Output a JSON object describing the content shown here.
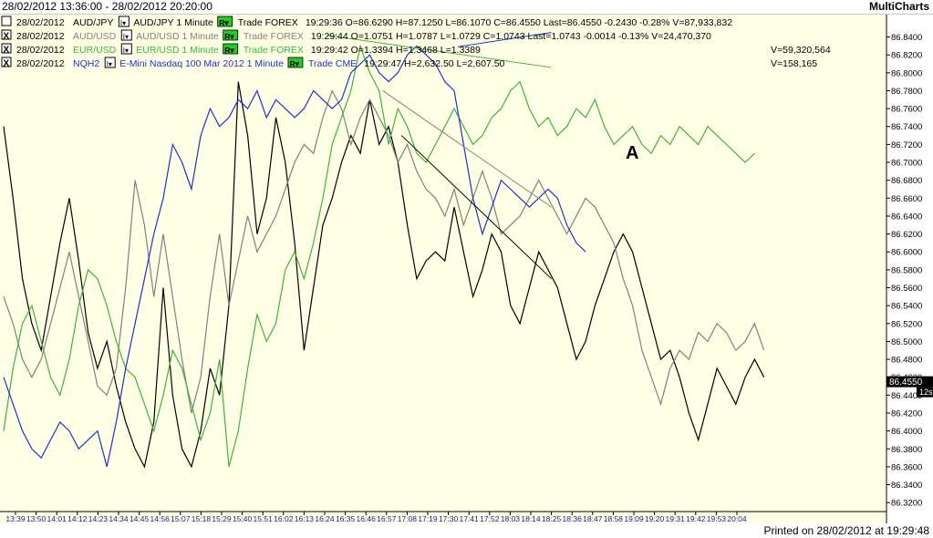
{
  "window": {
    "range": "28/02/2012 13:36:00 - 28/02/2012 20:20:00",
    "brand": "MultiCharts"
  },
  "footer": {
    "printed": "Printed on 28/02/2012 at 19:29:48"
  },
  "colors": {
    "background": "#ffffe6",
    "audjpy": "#000000",
    "audusd": "#808080",
    "eurusd": "#3cb43c",
    "nqh2": "#1e32c8",
    "btn": "#22cc22"
  },
  "legend": [
    {
      "check": "",
      "date": "28/02/2012",
      "sym": "AUD/JPY",
      "desc": "AUD/JPY 1 Minute",
      "venue": "Trade  FOREX",
      "stats": "19:29:36  O=86.6290  H=87.1250  L=86.1070  C=86.4550  Last=86.4550  -0.2430  -0.28%  V=87,933,832",
      "vol": "",
      "color": "#000000"
    },
    {
      "check": "X",
      "date": "28/02/2012",
      "sym": "AUD/USD",
      "desc": "AUD/USD 1 Minute",
      "venue": "Trade  FOREX",
      "stats": "19:29:44  O=1.0751  H=1.0787  L=1.0729  C=1.0743  Last=1.0743  -0.0014  -0.13%  V=24,470,370",
      "vol": "",
      "color": "#808080"
    },
    {
      "check": "X",
      "date": "28/02/2012",
      "sym": "EUR/USD",
      "desc": "EUR/USD 1 Minute",
      "venue": "Trade  FOREX",
      "stats": "19:29:42  O=1.3394  H=1.3468  L=1.3389",
      "vol": "V=59,320,564",
      "color": "#3cb43c"
    },
    {
      "check": "X",
      "date": "28/02/2012",
      "sym": "NQH2",
      "desc": "E-Mini Nasdaq 100 Mar 2012  1 Minute",
      "venue": "Trade  CME",
      "stats": "19:29:47                    H=2,632.50  L=2,607.50",
      "vol": "V=158,165",
      "color": "#1e32c8"
    }
  ],
  "annotation": "A",
  "chart_data": {
    "type": "line",
    "y_ticks": [
      86.32,
      86.34,
      86.36,
      86.38,
      86.4,
      86.42,
      86.44,
      86.46,
      86.48,
      86.5,
      86.52,
      86.54,
      86.56,
      86.58,
      86.6,
      86.62,
      86.64,
      86.66,
      86.68,
      86.7,
      86.72,
      86.74,
      86.76,
      86.78,
      86.8,
      86.82,
      86.84
    ],
    "y_tick_labels": [
      "86.3200",
      "86.3400",
      "86.3600",
      "86.3800",
      "86.4000",
      "86.4200",
      "86.4400",
      "86.4600",
      "86.4800",
      "86.5000",
      "86.5200",
      "86.5400",
      "86.5600",
      "86.5800",
      "86.6000",
      "86.6200",
      "86.6400",
      "86.6600",
      "86.6800",
      "86.7000",
      "86.7200",
      "86.7400",
      "86.7600",
      "86.7800",
      "86.8000",
      "86.8200",
      "86.8400"
    ],
    "ylim": [
      86.31,
      86.865
    ],
    "x_ticks": [
      "13:39",
      "13:50",
      "14:01",
      "14:12",
      "14:23",
      "14:34",
      "14:45",
      "14:56",
      "15:07",
      "15:18",
      "15:29",
      "15:40",
      "15:51",
      "16:02",
      "16:13",
      "16:24",
      "16:35",
      "16:46",
      "16:57",
      "17:08",
      "17:19",
      "17:30",
      "17:41",
      "17:52",
      "18:03",
      "18:14",
      "18:25",
      "18:36",
      "18:47",
      "18:58",
      "19:09",
      "19:20",
      "19:31",
      "19:42",
      "19:53",
      "20:04"
    ],
    "last_price": {
      "label": "86.4550",
      "value": 86.455,
      "countdown": "12s"
    },
    "series": [
      {
        "name": "AUD/JPY",
        "key": "audjpy",
        "values": [
          86.74,
          86.66,
          86.57,
          86.52,
          86.49,
          86.55,
          86.61,
          86.66,
          86.59,
          86.51,
          86.47,
          86.5,
          86.45,
          86.41,
          86.38,
          86.36,
          86.41,
          86.56,
          86.44,
          86.38,
          86.36,
          86.4,
          86.47,
          86.44,
          86.54,
          86.79,
          86.73,
          86.62,
          86.66,
          86.75,
          86.7,
          86.61,
          86.49,
          86.56,
          86.63,
          86.66,
          86.7,
          86.73,
          86.71,
          86.77,
          86.72,
          86.74,
          86.7,
          86.63,
          86.57,
          86.59,
          86.6,
          86.59,
          86.65,
          86.6,
          86.55,
          86.58,
          86.62,
          86.6,
          86.54,
          86.52,
          86.56,
          86.6,
          86.58,
          86.56,
          86.52,
          86.48,
          86.5,
          86.54,
          86.57,
          86.6,
          86.62,
          86.6,
          86.56,
          86.52,
          86.48,
          86.49,
          86.46,
          86.42,
          86.39,
          86.43,
          86.47,
          86.45,
          86.43,
          86.46,
          86.48,
          86.46,
          null
        ]
      },
      {
        "name": "AUD/USD",
        "key": "audusd",
        "values": [
          86.55,
          86.52,
          86.48,
          86.46,
          86.48,
          86.52,
          86.56,
          86.6,
          86.55,
          86.5,
          86.45,
          86.44,
          86.47,
          86.56,
          86.68,
          86.63,
          86.55,
          86.62,
          86.55,
          86.48,
          86.42,
          86.46,
          86.55,
          86.62,
          86.54,
          86.59,
          86.64,
          86.6,
          86.62,
          86.64,
          86.67,
          86.7,
          86.72,
          86.71,
          86.75,
          86.78,
          86.76,
          86.72,
          86.75,
          86.77,
          86.75,
          86.73,
          86.7,
          86.72,
          86.69,
          86.67,
          86.66,
          86.64,
          86.67,
          86.63,
          86.66,
          86.69,
          86.66,
          86.62,
          86.63,
          86.64,
          86.66,
          86.68,
          86.66,
          86.64,
          86.62,
          86.64,
          86.66,
          86.65,
          86.63,
          86.61,
          86.57,
          86.54,
          86.49,
          86.46,
          86.43,
          86.47,
          86.49,
          86.48,
          86.51,
          86.5,
          86.52,
          86.51,
          86.49,
          86.5,
          86.52,
          86.49,
          null
        ]
      },
      {
        "name": "EUR/USD",
        "key": "eurusd",
        "values": [
          86.4,
          86.47,
          86.52,
          86.54,
          86.5,
          86.46,
          86.44,
          86.48,
          86.54,
          86.58,
          86.57,
          86.54,
          86.5,
          86.47,
          86.46,
          86.43,
          86.4,
          86.44,
          86.49,
          86.47,
          86.43,
          86.39,
          86.42,
          86.48,
          86.36,
          86.4,
          86.47,
          86.53,
          86.5,
          86.52,
          86.58,
          86.6,
          86.57,
          86.61,
          86.66,
          86.72,
          86.75,
          86.78,
          86.83,
          86.8,
          86.78,
          86.72,
          86.76,
          86.74,
          86.71,
          86.7,
          86.72,
          86.74,
          86.76,
          86.74,
          86.72,
          86.73,
          86.75,
          86.76,
          86.78,
          86.79,
          86.76,
          86.74,
          86.75,
          86.73,
          86.74,
          86.76,
          86.75,
          86.77,
          86.74,
          86.72,
          86.73,
          86.74,
          86.72,
          86.71,
          86.73,
          86.72,
          86.74,
          86.73,
          86.72,
          86.74,
          86.73,
          86.72,
          86.71,
          86.7,
          86.71,
          null,
          null
        ]
      },
      {
        "name": "NQH2",
        "key": "nqh2",
        "values": [
          86.46,
          86.43,
          86.4,
          86.38,
          86.37,
          86.39,
          86.41,
          86.4,
          86.38,
          86.39,
          86.4,
          86.36,
          86.41,
          86.47,
          86.52,
          86.57,
          86.62,
          86.66,
          86.72,
          86.7,
          86.67,
          86.73,
          86.76,
          86.74,
          86.75,
          86.77,
          86.76,
          86.78,
          86.75,
          86.77,
          86.76,
          86.75,
          86.76,
          86.78,
          86.77,
          86.76,
          86.77,
          86.8,
          86.81,
          86.82,
          86.8,
          86.79,
          86.8,
          86.82,
          86.83,
          86.82,
          86.81,
          86.79,
          86.78,
          86.72,
          86.66,
          86.62,
          86.65,
          86.68,
          86.67,
          86.66,
          86.65,
          86.66,
          86.67,
          86.66,
          86.63,
          86.61,
          86.6,
          null,
          null,
          null,
          null,
          null,
          null,
          null,
          null,
          null,
          null,
          null,
          null,
          null,
          null,
          null,
          null,
          null,
          null,
          null,
          null
        ]
      }
    ],
    "trendlines": [
      {
        "key": "eurusd",
        "from": [
          "16:25",
          86.842
        ],
        "to": [
          "18:25",
          86.806
        ]
      },
      {
        "key": "nqh2",
        "from": [
          "17:35",
          86.829
        ],
        "to": [
          "18:25",
          86.845
        ]
      },
      {
        "key": "audusd",
        "from": [
          "16:55",
          86.78
        ],
        "to": [
          "18:25",
          86.65
        ]
      },
      {
        "key": "audjpy",
        "from": [
          "17:05",
          86.73
        ],
        "to": [
          "18:25",
          86.57
        ]
      }
    ]
  }
}
